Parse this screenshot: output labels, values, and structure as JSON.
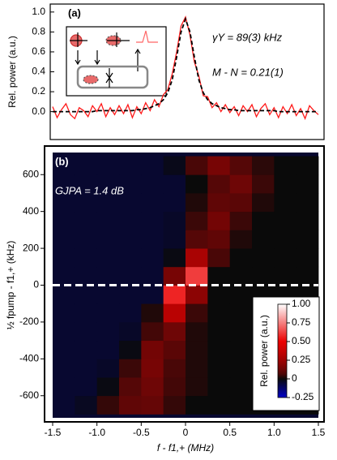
{
  "chart_data": [
    {
      "type": "line",
      "label": "(a)",
      "y_label": "Rel. power (a.u.)",
      "annotations": [
        "γY = 89(3) kHz",
        "M - N = 0.21(1)"
      ],
      "xlim": [
        -1.5,
        1.5
      ],
      "ylim": [
        -0.28,
        1.08
      ],
      "yticks": [
        {
          "value": 0,
          "label": "0.0"
        },
        {
          "value": 0.2,
          "label": "0.2"
        },
        {
          "value": 0.4,
          "label": "0.4"
        },
        {
          "value": 0.6,
          "label": "0.6"
        },
        {
          "value": 0.8,
          "label": "0.8"
        },
        {
          "value": 1,
          "label": "1.0"
        }
      ],
      "x": [
        -1.5,
        -1.45,
        -1.4,
        -1.35,
        -1.3,
        -1.25,
        -1.2,
        -1.15,
        -1.1,
        -1.05,
        -1.0,
        -0.95,
        -0.9,
        -0.85,
        -0.8,
        -0.75,
        -0.7,
        -0.65,
        -0.6,
        -0.55,
        -0.5,
        -0.45,
        -0.4,
        -0.35,
        -0.3,
        -0.25,
        -0.2,
        -0.15,
        -0.1,
        -0.05,
        0,
        0.05,
        0.1,
        0.15,
        0.2,
        0.25,
        0.3,
        0.35,
        0.4,
        0.45,
        0.5,
        0.55,
        0.6,
        0.65,
        0.7,
        0.75,
        0.8,
        0.85,
        0.9,
        0.95,
        1.0,
        1.05,
        1.1,
        1.15,
        1.2,
        1.25,
        1.3,
        1.35,
        1.4,
        1.45,
        1.5
      ],
      "series": [
        {
          "color": "#ff1a1a",
          "dashed": false,
          "values": [
            0.05,
            -0.06,
            0.02,
            0.08,
            -0.03,
            -0.07,
            0.04,
            0.01,
            -0.05,
            0.06,
            0.0,
            0.08,
            -0.05,
            0.04,
            -0.03,
            0.06,
            -0.02,
            0.07,
            -0.06,
            0.05,
            -0.02,
            0.09,
            0.01,
            0.12,
            0.05,
            0.17,
            0.22,
            0.38,
            0.6,
            0.86,
            0.95,
            0.77,
            0.5,
            0.36,
            0.16,
            0.15,
            0.04,
            0.09,
            0.0,
            0.07,
            -0.01,
            0.05,
            -0.04,
            0.06,
            0.0,
            0.07,
            -0.05,
            0.03,
            0.08,
            -0.03,
            0.04,
            -0.06,
            0.05,
            -0.02,
            0.07,
            -0.04,
            0.03,
            -0.07,
            0.06,
            0.01,
            -0.03
          ]
        },
        {
          "color": "#000000",
          "dashed": true,
          "values": [
            0,
            0,
            0,
            0,
            0,
            0,
            0,
            0,
            0,
            0,
            0.01,
            0.01,
            0.01,
            0.01,
            0.01,
            0.01,
            0.01,
            0.01,
            0.01,
            0.02,
            0.02,
            0.03,
            0.04,
            0.06,
            0.08,
            0.12,
            0.19,
            0.32,
            0.55,
            0.8,
            0.93,
            0.8,
            0.55,
            0.32,
            0.19,
            0.12,
            0.08,
            0.06,
            0.04,
            0.03,
            0.02,
            0.02,
            0.01,
            0.01,
            0.01,
            0.01,
            0.01,
            0.01,
            0.01,
            0.01,
            0.01,
            0,
            0,
            0,
            0,
            0,
            0,
            0,
            0,
            0,
            0
          ]
        }
      ]
    },
    {
      "type": "heatmap",
      "label": "(b)",
      "annotation": "GJPA = 1.4 dB",
      "x_label": "f - f1,+ (MHz)",
      "y_label": "½ fpump - f1,+ (kHz)",
      "colorbar_label": "Rel. power (a.u.)",
      "xlim": [
        -1.5,
        1.5
      ],
      "ylim": [
        -720,
        720
      ],
      "xticks": [
        -1.5,
        {
          "value": -1,
          "label": "-1.0"
        },
        -0.5,
        0,
        0.5,
        {
          "value": 1,
          "label": "1.0"
        },
        1.5
      ],
      "yticks": [
        -600,
        -400,
        -200,
        0,
        200,
        400,
        600
      ],
      "clim": [
        -0.25,
        1
      ],
      "cticks": [
        {
          "value": 1,
          "label": "1.00"
        },
        0.75,
        {
          "value": 0.5,
          "label": "0.50"
        },
        0.25,
        0,
        -0.25
      ],
      "hline": 0,
      "x": [
        -1.375,
        -1.125,
        -0.875,
        -0.625,
        -0.375,
        -0.125,
        0.125,
        0.375,
        0.625,
        0.875,
        1.125,
        1.375
      ],
      "y": [
        -650,
        -550,
        -450,
        -350,
        -250,
        -150,
        -50,
        50,
        150,
        250,
        350,
        450,
        550,
        650
      ],
      "z": [
        [
          -0.05,
          -0.03,
          0.03,
          0.1,
          0.11,
          0.03,
          0,
          0,
          0,
          0,
          0,
          0
        ],
        [
          -0.05,
          -0.05,
          -0.01,
          0.08,
          0.13,
          0.05,
          0.01,
          0,
          0,
          0,
          0,
          0
        ],
        [
          -0.05,
          -0.05,
          -0.04,
          0.04,
          0.15,
          0.06,
          0.01,
          0,
          0,
          0,
          0,
          0
        ],
        [
          -0.05,
          -0.05,
          -0.05,
          -0.01,
          0.14,
          0.09,
          0.01,
          0,
          0,
          0,
          0,
          0
        ],
        [
          -0.05,
          -0.05,
          -0.05,
          -0.04,
          0.05,
          0.13,
          0.01,
          0,
          0,
          0,
          0,
          0
        ],
        [
          -0.05,
          -0.05,
          -0.05,
          -0.05,
          0.01,
          0.33,
          0.04,
          0,
          0,
          0,
          0,
          0
        ],
        [
          -0.05,
          -0.05,
          -0.05,
          -0.05,
          -0.05,
          0.57,
          0.2,
          0,
          0,
          0,
          0,
          0
        ],
        [
          -0.05,
          -0.05,
          -0.05,
          -0.05,
          -0.05,
          0.15,
          0.62,
          0,
          0,
          0,
          0,
          0
        ],
        [
          -0.05,
          -0.05,
          -0.05,
          -0.05,
          -0.05,
          -0.01,
          0.28,
          0.06,
          0,
          0,
          0,
          0
        ],
        [
          -0.05,
          -0.05,
          -0.05,
          -0.05,
          -0.05,
          -0.04,
          0.08,
          0.1,
          0.01,
          0,
          0,
          0
        ],
        [
          -0.05,
          -0.05,
          -0.05,
          -0.05,
          -0.05,
          -0.04,
          0.04,
          0.14,
          0.04,
          0,
          0,
          0
        ],
        [
          -0.05,
          -0.05,
          -0.05,
          -0.05,
          -0.05,
          -0.05,
          0.01,
          0.1,
          0.09,
          0.01,
          0,
          0
        ],
        [
          -0.05,
          -0.05,
          -0.05,
          -0.05,
          -0.05,
          -0.05,
          0,
          0.08,
          0.13,
          0.04,
          0,
          0
        ],
        [
          -0.05,
          -0.05,
          -0.05,
          -0.05,
          -0.05,
          -0.02,
          0.06,
          0.15,
          0.08,
          0.02,
          0,
          0
        ]
      ]
    }
  ]
}
